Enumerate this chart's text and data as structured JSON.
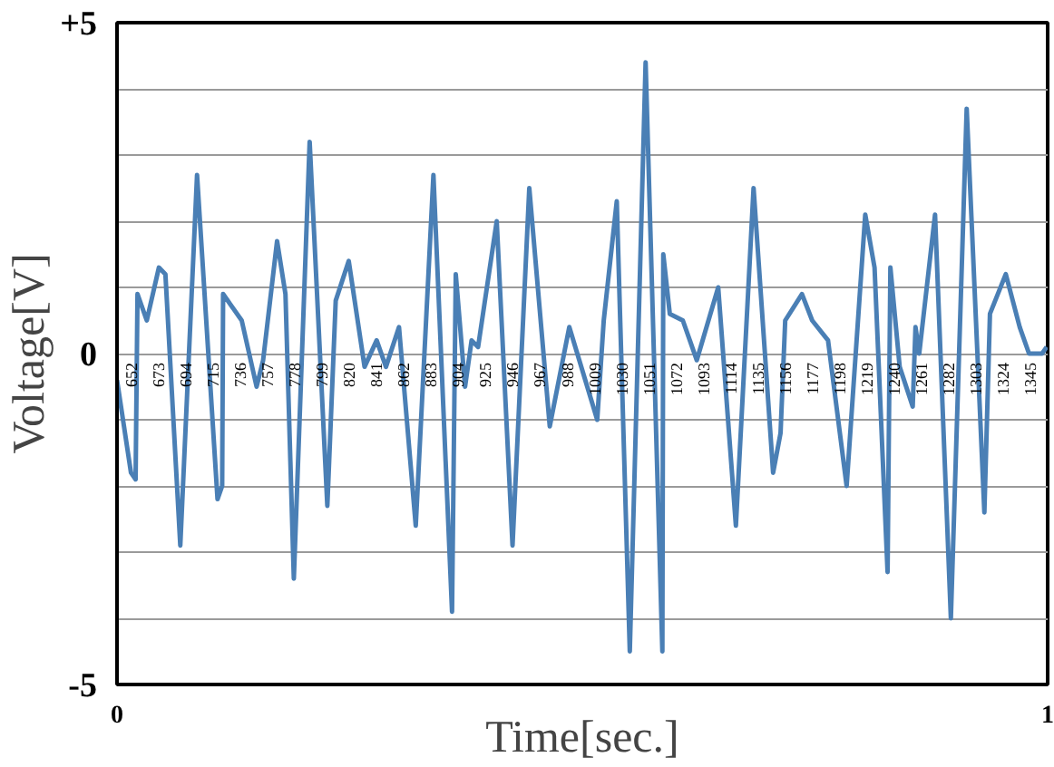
{
  "chart_data": {
    "type": "line",
    "xlabel": "Time[sec.]",
    "ylabel": "Voltage[V]",
    "xlim": [
      0,
      1
    ],
    "xticks": [
      0,
      1
    ],
    "ylim": [
      -5,
      5
    ],
    "yticks": [
      {
        "value": 5,
        "label": "+5"
      },
      {
        "value": 4,
        "label": null
      },
      {
        "value": 3,
        "label": null
      },
      {
        "value": 2,
        "label": null
      },
      {
        "value": 1,
        "label": null
      },
      0,
      {
        "value": -1,
        "label": null
      },
      {
        "value": -2,
        "label": null
      },
      {
        "value": -3,
        "label": null
      },
      {
        "value": -4,
        "label": null
      },
      -5
    ],
    "x2lim": [
      641,
      1358
    ],
    "x2ticks": [
      652,
      673,
      694,
      715,
      736,
      757,
      778,
      799,
      820,
      841,
      862,
      883,
      904,
      925,
      946,
      967,
      988,
      1009,
      1030,
      1051,
      1072,
      1093,
      1114,
      1135,
      1156,
      1177,
      1198,
      1219,
      1240,
      1261,
      1282,
      1303,
      1324,
      1345
    ],
    "grid": "y",
    "series": [
      {
        "color": "#4a7fb5",
        "x": [
          0,
          0.015,
          0.02,
          0.022,
          0.032,
          0.045,
          0.052,
          0.068,
          0.086,
          0.108,
          0.113,
          0.114,
          0.134,
          0.15,
          0.157,
          0.172,
          0.181,
          0.19,
          0.207,
          0.226,
          0.235,
          0.249,
          0.266,
          0.279,
          0.289,
          0.303,
          0.321,
          0.34,
          0.36,
          0.364,
          0.374,
          0.381,
          0.388,
          0.408,
          0.425,
          0.443,
          0.465,
          0.486,
          0.516,
          0.523,
          0.537,
          0.551,
          0.568,
          0.586,
          0.587,
          0.594,
          0.608,
          0.623,
          0.646,
          0.665,
          0.684,
          0.705,
          0.713,
          0.718,
          0.736,
          0.747,
          0.764,
          0.784,
          0.804,
          0.814,
          0.828,
          0.831,
          0.841,
          0.855,
          0.858,
          0.862,
          0.879,
          0.896,
          0.913,
          0.932,
          0.938,
          0.955,
          0.97,
          0.98,
          0.994,
          0.999
        ],
        "values": [
          -0.4,
          -1.8,
          -1.9,
          0.9,
          0.5,
          1.3,
          1.2,
          -2.9,
          2.7,
          -2.2,
          -2.0,
          0.9,
          0.5,
          -0.5,
          -0.1,
          1.7,
          0.9,
          -3.4,
          3.2,
          -2.3,
          0.8,
          1.4,
          -0.2,
          0.2,
          -0.2,
          0.4,
          -2.6,
          2.7,
          -3.9,
          1.2,
          -0.5,
          0.2,
          0.1,
          2.0,
          -2.9,
          2.5,
          -1.1,
          0.4,
          -1.0,
          0.5,
          2.3,
          -4.5,
          4.4,
          -4.5,
          1.5,
          0.6,
          0.5,
          -0.1,
          1.0,
          -2.6,
          2.5,
          -1.8,
          -1.2,
          0.5,
          0.9,
          0.5,
          0.2,
          -2.0,
          2.1,
          1.3,
          -3.3,
          1.3,
          -0.2,
          -0.8,
          0.4,
          0.0,
          2.1,
          -4.0,
          3.7,
          -2.4,
          0.6,
          1.2,
          0.4,
          0.0,
          0.0,
          0.1
        ]
      }
    ]
  }
}
